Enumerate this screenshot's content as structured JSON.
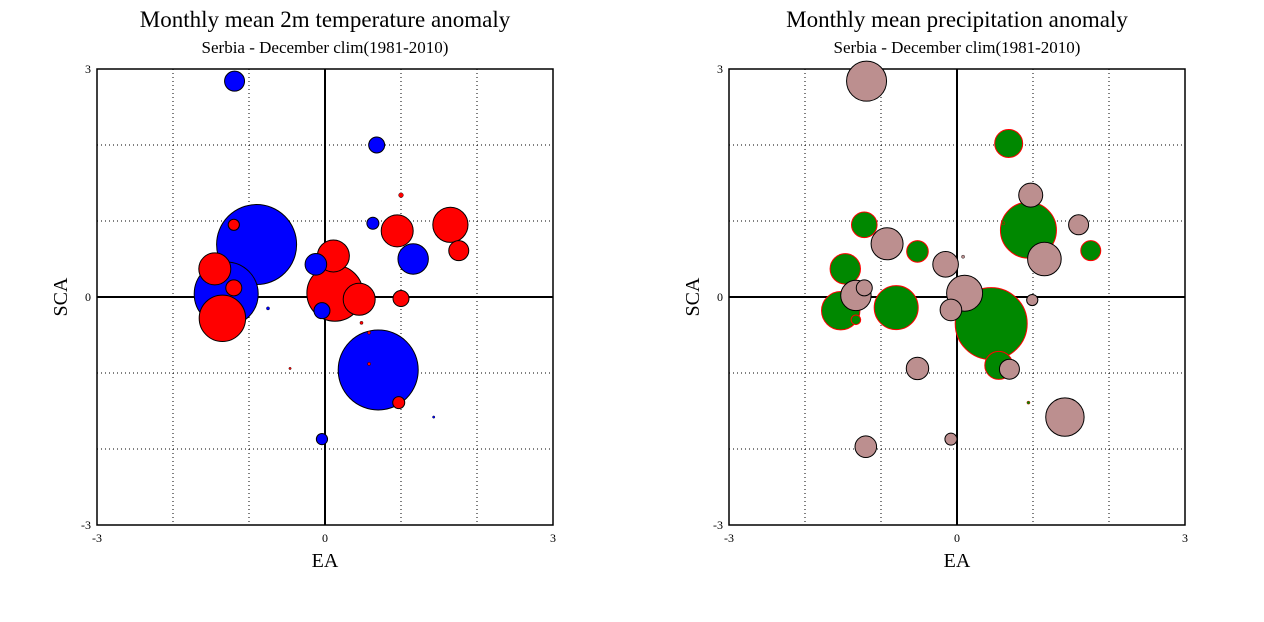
{
  "chart_data": [
    {
      "type": "scatter",
      "title": "Monthly mean 2m temperature anomaly",
      "subtitle": "Serbia - December  clim(1981-2010)",
      "xlabel": "EA",
      "ylabel": "SCA",
      "xlim": [
        -3,
        3
      ],
      "ylim": [
        -3,
        3
      ],
      "xticks": [
        "-3",
        "0",
        "3"
      ],
      "yticks": [
        "-3",
        "0",
        "3"
      ],
      "grid": true,
      "colors": {
        "positive": "#ff0000",
        "negative": "#0000ff",
        "outline": "#000000"
      },
      "points": [
        {
          "x": -1.19,
          "y": 2.84,
          "r": 0.25,
          "sign": "negative"
        },
        {
          "x": 0.68,
          "y": 2.0,
          "r": 0.2,
          "sign": "negative"
        },
        {
          "x": 1.0,
          "y": 1.34,
          "r": 0.06,
          "sign": "positive"
        },
        {
          "x": 1.65,
          "y": 0.95,
          "r": 0.44,
          "sign": "positive"
        },
        {
          "x": 1.76,
          "y": 0.61,
          "r": 0.25,
          "sign": "positive"
        },
        {
          "x": 0.95,
          "y": 0.87,
          "r": 0.4,
          "sign": "positive"
        },
        {
          "x": 0.63,
          "y": 0.97,
          "r": 0.15,
          "sign": "negative"
        },
        {
          "x": 1.16,
          "y": 0.5,
          "r": 0.38,
          "sign": "negative"
        },
        {
          "x": -1.2,
          "y": 0.95,
          "r": 0.14,
          "sign": "positive"
        },
        {
          "x": -0.9,
          "y": 0.69,
          "r": 1.0,
          "sign": "negative"
        },
        {
          "x": -1.45,
          "y": 0.37,
          "r": 0.4,
          "sign": "positive"
        },
        {
          "x": -0.12,
          "y": 0.43,
          "r": 0.27,
          "sign": "negative"
        },
        {
          "x": 0.11,
          "y": 0.54,
          "r": 0.4,
          "sign": "positive"
        },
        {
          "x": -1.3,
          "y": 0.04,
          "r": 0.8,
          "sign": "negative"
        },
        {
          "x": -1.2,
          "y": 0.12,
          "r": 0.2,
          "sign": "positive"
        },
        {
          "x": -1.35,
          "y": -0.28,
          "r": 0.58,
          "sign": "positive"
        },
        {
          "x": -0.75,
          "y": -0.15,
          "r": 0.04,
          "sign": "negative"
        },
        {
          "x": -0.04,
          "y": -0.18,
          "r": 0.2,
          "sign": "negative"
        },
        {
          "x": 0.13,
          "y": 0.05,
          "r": 0.7,
          "sign": "positive"
        },
        {
          "x": 0.45,
          "y": -0.03,
          "r": 0.4,
          "sign": "positive"
        },
        {
          "x": 1.0,
          "y": -0.02,
          "r": 0.2,
          "sign": "positive"
        },
        {
          "x": 0.48,
          "y": -0.34,
          "r": 0.04,
          "sign": "positive"
        },
        {
          "x": 0.58,
          "y": -0.47,
          "r": 0.04,
          "sign": "positive"
        },
        {
          "x": 0.7,
          "y": -0.96,
          "r": 1.0,
          "sign": "negative"
        },
        {
          "x": 0.58,
          "y": -0.88,
          "r": 0.04,
          "sign": "positive"
        },
        {
          "x": -0.46,
          "y": -0.94,
          "r": 0.03,
          "sign": "positive"
        },
        {
          "x": 0.97,
          "y": -1.39,
          "r": 0.15,
          "sign": "positive"
        },
        {
          "x": 1.43,
          "y": -1.58,
          "r": 0.03,
          "sign": "negative"
        },
        {
          "x": -0.04,
          "y": -1.87,
          "r": 0.14,
          "sign": "negative"
        }
      ]
    },
    {
      "type": "scatter",
      "title": "Monthly mean precipitation anomaly",
      "subtitle": "Serbia - December  clim(1981-2010)",
      "xlabel": "EA",
      "ylabel": "SCA",
      "xlim": [
        -3,
        3
      ],
      "ylim": [
        -3,
        3
      ],
      "xticks": [
        "-3",
        "0",
        "3"
      ],
      "yticks": [
        "-3",
        "0",
        "3"
      ],
      "grid": true,
      "colors": {
        "positive": "#008800",
        "negative": "#bc8f8f",
        "positive_outline": "#ff0000",
        "negative_outline": "#000000"
      },
      "points": [
        {
          "x": -1.19,
          "y": 2.84,
          "r": 0.5,
          "sign": "negative"
        },
        {
          "x": 0.68,
          "y": 2.02,
          "r": 0.35,
          "sign": "positive"
        },
        {
          "x": 0.97,
          "y": 1.34,
          "r": 0.3,
          "sign": "negative"
        },
        {
          "x": 1.6,
          "y": 0.95,
          "r": 0.25,
          "sign": "negative"
        },
        {
          "x": 1.76,
          "y": 0.61,
          "r": 0.25,
          "sign": "positive"
        },
        {
          "x": 0.94,
          "y": 0.88,
          "r": 0.7,
          "sign": "positive"
        },
        {
          "x": 0.61,
          "y": 0.97,
          "r": 0.04,
          "sign": "positive"
        },
        {
          "x": 1.15,
          "y": 0.5,
          "r": 0.42,
          "sign": "negative"
        },
        {
          "x": -1.22,
          "y": 0.95,
          "r": 0.32,
          "sign": "positive"
        },
        {
          "x": -0.92,
          "y": 0.7,
          "r": 0.4,
          "sign": "negative"
        },
        {
          "x": -1.47,
          "y": 0.37,
          "r": 0.38,
          "sign": "positive"
        },
        {
          "x": -0.52,
          "y": 0.6,
          "r": 0.27,
          "sign": "positive"
        },
        {
          "x": -0.15,
          "y": 0.43,
          "r": 0.32,
          "sign": "negative"
        },
        {
          "x": 0.08,
          "y": 0.53,
          "r": 0.04,
          "sign": "negative"
        },
        {
          "x": -1.33,
          "y": 0.02,
          "r": 0.38,
          "sign": "negative"
        },
        {
          "x": -1.22,
          "y": 0.12,
          "r": 0.2,
          "sign": "negative"
        },
        {
          "x": -1.33,
          "y": -0.3,
          "r": 0.12,
          "sign": "positive"
        },
        {
          "x": -1.53,
          "y": -0.18,
          "r": 0.48,
          "sign": "positive"
        },
        {
          "x": -0.8,
          "y": -0.14,
          "r": 0.55,
          "sign": "positive"
        },
        {
          "x": -0.08,
          "y": -0.17,
          "r": 0.27,
          "sign": "negative"
        },
        {
          "x": 0.1,
          "y": 0.05,
          "r": 0.45,
          "sign": "negative"
        },
        {
          "x": 0.45,
          "y": -0.35,
          "r": 0.9,
          "sign": "positive"
        },
        {
          "x": 0.99,
          "y": -0.04,
          "r": 0.14,
          "sign": "negative"
        },
        {
          "x": 0.69,
          "y": -0.95,
          "r": 0.25,
          "sign": "negative"
        },
        {
          "x": 0.55,
          "y": -0.9,
          "r": 0.35,
          "sign": "positive"
        },
        {
          "x": -0.52,
          "y": -0.94,
          "r": 0.28,
          "sign": "negative"
        },
        {
          "x": 0.94,
          "y": -1.39,
          "r": 0.04,
          "sign": "positive"
        },
        {
          "x": 1.42,
          "y": -1.58,
          "r": 0.48,
          "sign": "negative"
        },
        {
          "x": -0.08,
          "y": -1.87,
          "r": 0.15,
          "sign": "negative"
        },
        {
          "x": -1.2,
          "y": -1.97,
          "r": 0.27,
          "sign": "negative"
        }
      ]
    }
  ]
}
